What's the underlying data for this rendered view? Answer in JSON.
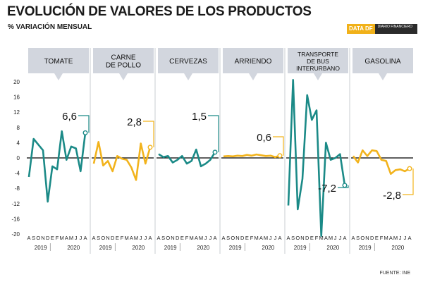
{
  "header": {
    "title": "EVOLUCIÓN DE VALORES DE LOS PRODUCTOS",
    "subtitle": "% VARIACIÓN MENSUAL",
    "logo_brand": "DATA DF",
    "logo_sub": "DIARIO FINANCIERO",
    "source": "FUENTE: INE"
  },
  "colors": {
    "teal": "#1b8a87",
    "yellow": "#f2b31c",
    "panel": "#d2d6de",
    "zero": "#000000"
  },
  "chart_data": {
    "type": "line",
    "title": "EVOLUCIÓN DE VALORES DE LOS PRODUCTOS",
    "ylabel": "% VARIACIÓN MENSUAL",
    "ylim": [
      -20,
      20
    ],
    "yticks": [
      20,
      16,
      12,
      8,
      4,
      0,
      -4,
      -8,
      -12,
      -16,
      -20
    ],
    "month_labels": [
      "A",
      "S",
      "O",
      "N",
      "D",
      "E",
      "F",
      "M",
      "A",
      "M",
      "J",
      "J",
      "A"
    ],
    "year_labels": [
      "2019",
      "2020"
    ],
    "series": [
      {
        "name": "TOMATE",
        "color": "teal",
        "callout": "6,6",
        "values": [
          -5,
          5,
          3.5,
          2,
          -11.5,
          -2.2,
          -3,
          7,
          -0.5,
          3,
          2.5,
          -3.5,
          6.6
        ]
      },
      {
        "name": "CARNE DE POLLO",
        "color": "yellow",
        "callout": "2,8",
        "values": [
          -1.5,
          4.2,
          -2,
          -0.8,
          -3.5,
          0.5,
          -0.2,
          -0.5,
          -2.5,
          -5.8,
          3.8,
          -1.5,
          2.8
        ]
      },
      {
        "name": "CERVEZAS",
        "color": "teal",
        "callout": "1,5",
        "values": [
          1,
          0.2,
          0.5,
          -1.2,
          -0.5,
          0.5,
          -1.5,
          -0.8,
          2.2,
          -2.2,
          -1.5,
          -0.5,
          1.5
        ]
      },
      {
        "name": "ARRIENDO",
        "color": "yellow",
        "callout": "0,6",
        "values": [
          0.4,
          0.5,
          0.4,
          0.6,
          0.5,
          0.8,
          0.6,
          0.9,
          0.7,
          0.5,
          0.6,
          0.2,
          0.6
        ]
      },
      {
        "name": "TRANSPORTE DE BUS INTERURBANO",
        "color": "teal",
        "callout": "-7,2",
        "values": [
          -12.5,
          20.5,
          -13.5,
          -5.5,
          16.5,
          10,
          12.5,
          -20.5,
          4,
          -0.5,
          0,
          1,
          -7.2
        ]
      },
      {
        "name": "GASOLINA",
        "color": "yellow",
        "callout": "-2,8",
        "values": [
          0.5,
          -1.2,
          2,
          0.5,
          2,
          1.8,
          -0.5,
          -0.8,
          -4.2,
          -3.2,
          -3,
          -3.5,
          -2.8
        ]
      }
    ]
  }
}
